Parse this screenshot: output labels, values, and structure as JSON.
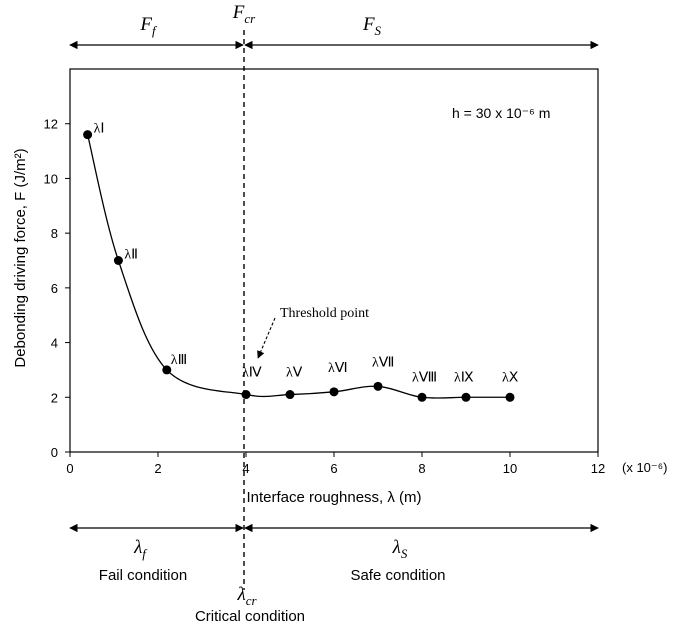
{
  "chart_data": {
    "type": "line",
    "xlabel": "Interface roughness, λ (m)",
    "ylabel": "Debonding driving force, F (J/m²)",
    "x_multiplier": "(x 10⁻⁶)",
    "xlim": [
      0,
      12
    ],
    "ylim": [
      0,
      14
    ],
    "xticks": [
      0,
      2,
      4,
      6,
      8,
      10,
      12
    ],
    "yticks": [
      0,
      2,
      4,
      6,
      8,
      10,
      12
    ],
    "grid": false,
    "annotation": "h = 30 x 10⁻⁶ m",
    "threshold_label": "Threshold point",
    "critical_x": 4,
    "points": [
      {
        "label": "λⅠ",
        "x": 0.4,
        "y": 11.6
      },
      {
        "label": "λⅡ",
        "x": 1.1,
        "y": 7.0
      },
      {
        "label": "λⅢ",
        "x": 2.2,
        "y": 3.0
      },
      {
        "label": "λⅣ",
        "x": 4.0,
        "y": 2.1
      },
      {
        "label": "λⅤ",
        "x": 5.0,
        "y": 2.1
      },
      {
        "label": "λⅥ",
        "x": 6.0,
        "y": 2.2
      },
      {
        "label": "λⅦ",
        "x": 7.0,
        "y": 2.4
      },
      {
        "label": "λⅧ",
        "x": 8.0,
        "y": 2.0
      },
      {
        "label": "λⅨ",
        "x": 9.0,
        "y": 2.0
      },
      {
        "label": "λⅩ",
        "x": 10.0,
        "y": 2.0
      }
    ]
  },
  "top": {
    "left_label": "F",
    "left_sub": "f",
    "mid_label": "F",
    "mid_sub": "cr",
    "right_label": "F",
    "right_sub": "S"
  },
  "bottom": {
    "left_label": "λ",
    "left_sub": "f",
    "right_label": "λ",
    "right_sub": "S",
    "mid_label": "λ",
    "mid_sub": "cr",
    "fail_text": "Fail condition",
    "safe_text": "Safe condition",
    "critical_text": "Critical condition"
  }
}
